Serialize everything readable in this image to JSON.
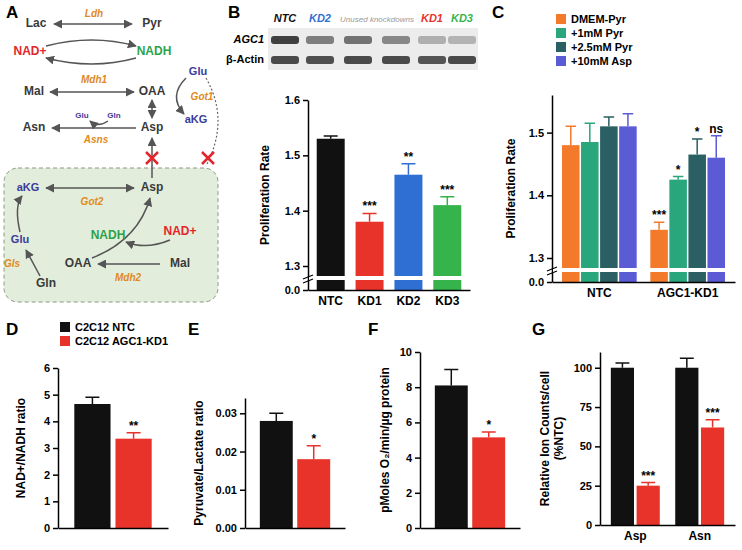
{
  "diagram": {
    "panel": "A",
    "nodes": [
      "Lac",
      "Pyr",
      "Ldh",
      "NAD+",
      "NADH",
      "Mdh1",
      "Mal",
      "OAA",
      "Glu",
      "aKG",
      "Got1",
      "Asp",
      "Asn",
      "Glu",
      "Gln",
      "Asns",
      "aKG",
      "Asp",
      "Got2",
      "NADH",
      "NAD+",
      "Glu",
      "OAA",
      "Mal",
      "Gln",
      "Gls",
      "Mdh2"
    ]
  },
  "blot": {
    "lanes": [
      "NTC",
      "KD2",
      "Unused knockdowns",
      "KD1",
      "KD3"
    ],
    "rows": [
      "AGC1",
      "β-Actin"
    ]
  },
  "chart_data": [
    {
      "type": "bar",
      "panel": "B",
      "ylabel": "Proliferation Rate",
      "categories": [
        "NTC",
        "KD1",
        "KD2",
        "KD3"
      ],
      "values": [
        1.53,
        1.38,
        1.465,
        1.41
      ],
      "errors": [
        0.005,
        0.015,
        0.02,
        0.015
      ],
      "significance": [
        null,
        "***",
        "**",
        "***"
      ],
      "colors": [
        "#111111",
        "#e8332b",
        "#2f6fd3",
        "#34b44a"
      ],
      "ylim": [
        0,
        1.6
      ],
      "yticks": [
        {
          "value": 0,
          "label": "0.0"
        },
        1.3,
        1.4,
        1.5,
        1.6
      ]
    },
    {
      "type": "bar",
      "panel": "C",
      "ylabel": "Proliferation Rate",
      "categories": [
        "NTC",
        "AGC1-KD1"
      ],
      "series": [
        {
          "name": "DMEM-Pyr",
          "color": "#f37a2a",
          "values": [
            1.48,
            1.345
          ],
          "errors": [
            0.03,
            0.012
          ],
          "significance": [
            null,
            "***"
          ]
        },
        {
          "name": "+1mM Pyr",
          "color": "#2aa67c",
          "values": [
            1.485,
            1.425
          ],
          "errors": [
            0.03,
            0.005
          ],
          "significance": [
            null,
            "*"
          ]
        },
        {
          "name": "+2.5mM Pyr",
          "color": "#2a5f63",
          "values": [
            1.51,
            1.465
          ],
          "errors": [
            0.015,
            0.025
          ],
          "significance": [
            null,
            "*"
          ]
        },
        {
          "name": "+10mM Asp",
          "color": "#5b5bd6",
          "values": [
            1.51,
            1.46
          ],
          "errors": [
            0.02,
            0.035
          ],
          "significance": [
            null,
            "ns"
          ]
        }
      ],
      "legend": "top",
      "ylim": [
        0,
        1.56
      ],
      "yticks": [
        {
          "value": 0,
          "label": "0.0"
        },
        1.3,
        1.4,
        1.5
      ]
    },
    {
      "type": "bar",
      "panel": "D",
      "ylabel": "NAD+/NADH ratio",
      "categories": [
        null
      ],
      "series": [
        {
          "name": "C2C12 NTC",
          "color": "#111111",
          "values": [
            4.65
          ],
          "errors": [
            0.25
          ]
        },
        {
          "name": "C2C12 AGC1-KD1",
          "color": "#e8332b",
          "values": [
            3.35
          ],
          "errors": [
            0.22
          ],
          "significance": [
            "**"
          ]
        }
      ],
      "legend": "top",
      "ylim": [
        0,
        6
      ],
      "yticks": [
        0,
        1,
        2,
        3,
        4,
        5,
        6
      ]
    },
    {
      "type": "bar",
      "panel": "E",
      "ylabel": "Pyruvate/Lactate ratio",
      "categories": [
        null
      ],
      "series": [
        {
          "color": "#111111",
          "values": [
            0.028
          ],
          "errors": [
            0.002
          ]
        },
        {
          "color": "#e8332b",
          "values": [
            0.018
          ],
          "errors": [
            0.0035
          ],
          "significance": [
            "*"
          ]
        }
      ],
      "ylim": [
        0,
        0.034
      ],
      "yticks": [
        {
          "value": 0,
          "label": "0.00"
        },
        {
          "value": 0.01,
          "label": "0.01"
        },
        {
          "value": 0.02,
          "label": "0.02"
        },
        {
          "value": 0.03,
          "label": "0.03"
        }
      ]
    },
    {
      "type": "bar",
      "panel": "F",
      "ylabel": "pMoles O₂/min/µg protein",
      "categories": [
        null
      ],
      "series": [
        {
          "color": "#111111",
          "values": [
            8.1
          ],
          "errors": [
            0.9
          ]
        },
        {
          "color": "#e8332b",
          "values": [
            5.15
          ],
          "errors": [
            0.3
          ],
          "significance": [
            "*"
          ]
        }
      ],
      "ylim": [
        0,
        10
      ],
      "yticks": [
        0,
        2,
        4,
        6,
        8,
        10
      ]
    },
    {
      "type": "bar",
      "panel": "G",
      "ylabel": [
        "Relative Ion Counts/cell",
        "(%NTC)"
      ],
      "categories": [
        "Asp",
        "Asn"
      ],
      "series": [
        {
          "color": "#111111",
          "values": [
            100,
            100
          ],
          "errors": [
            3,
            6
          ]
        },
        {
          "color": "#e8332b",
          "values": [
            25,
            62
          ],
          "errors": [
            2,
            5
          ],
          "significance": [
            "***",
            "***"
          ]
        }
      ],
      "ylim": [
        0,
        110
      ],
      "yticks": [
        0,
        25,
        50,
        75,
        100
      ]
    }
  ]
}
